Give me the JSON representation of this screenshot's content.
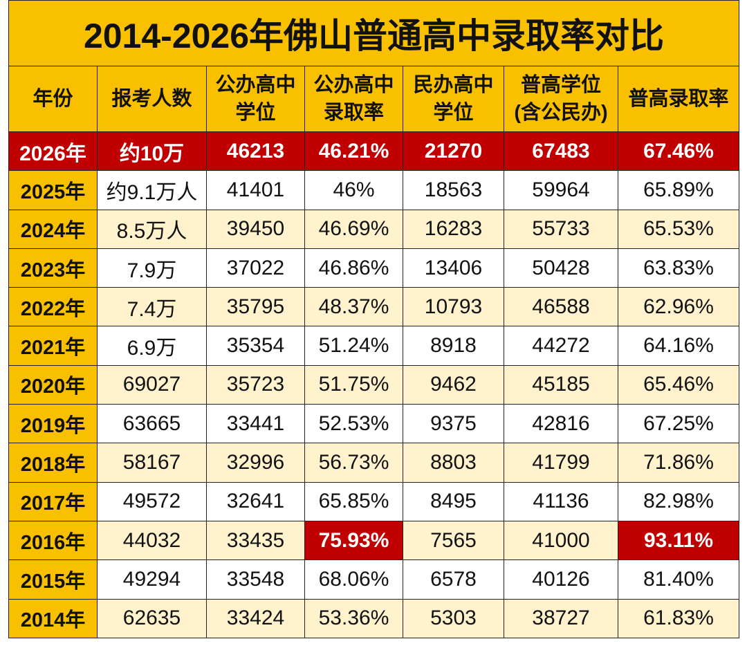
{
  "title": "2014-2026年佛山普通高中录取率对比",
  "table": {
    "headers": [
      "年份",
      "报考人数",
      "公办高中\n学位",
      "公办高中\n录取率",
      "民办高中\n学位",
      "普高学位\n(含公民办)",
      "普高录取率"
    ],
    "rows": [
      [
        "2026年",
        "约10万",
        "46213",
        "46.21%",
        "21270",
        "67483",
        "67.46%"
      ],
      [
        "2025年",
        "约9.1万人",
        "41401",
        "46%",
        "18563",
        "59964",
        "65.89%"
      ],
      [
        "2024年",
        "8.5万人",
        "39450",
        "46.69%",
        "16283",
        "55733",
        "65.53%"
      ],
      [
        "2023年",
        "7.9万",
        "37022",
        "46.86%",
        "13406",
        "50428",
        "63.83%"
      ],
      [
        "2022年",
        "7.4万",
        "35795",
        "48.37%",
        "10793",
        "46588",
        "62.96%"
      ],
      [
        "2021年",
        "6.9万",
        "35354",
        "51.24%",
        "8918",
        "44272",
        "64.16%"
      ],
      [
        "2020年",
        "69027",
        "35723",
        "51.75%",
        "9462",
        "45185",
        "65.46%"
      ],
      [
        "2019年",
        "63665",
        "33441",
        "52.53%",
        "9375",
        "42816",
        "67.25%"
      ],
      [
        "2018年",
        "58167",
        "32996",
        "56.73%",
        "8803",
        "41799",
        "71.86%"
      ],
      [
        "2017年",
        "49572",
        "32641",
        "65.85%",
        "8495",
        "41136",
        "82.98%"
      ],
      [
        "2016年",
        "44032",
        "33435",
        "75.93%",
        "7565",
        "41000",
        "93.11%"
      ],
      [
        "2015年",
        "49294",
        "33548",
        "68.06%",
        "6578",
        "40126",
        "81.40%"
      ],
      [
        "2014年",
        "62635",
        "33424",
        "53.36%",
        "5303",
        "38727",
        "61.83%"
      ]
    ]
  }
}
